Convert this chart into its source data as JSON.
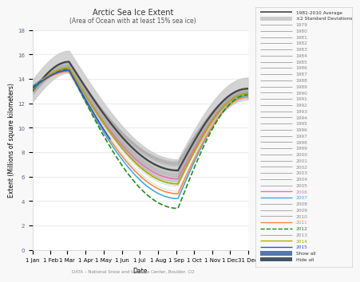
{
  "title": "Arctic Sea Ice Extent",
  "subtitle": "(Area of Ocean with at least 15% sea ice)",
  "xlabel": "Date",
  "ylabel": "Extent (Millions of square kilometers)",
  "source": "DATA – National Snow and Ice Data Center, Boulder, CO",
  "background_color": "#f8f8f8",
  "plot_bg_color": "#ffffff",
  "ylim": [
    0,
    18
  ],
  "yticks": [
    0,
    2,
    4,
    6,
    8,
    10,
    12,
    14,
    16,
    18
  ],
  "highlighted_years": {
    "2006": {
      "color": "#dd77aa",
      "lw": 1.2,
      "ls": "-"
    },
    "2007": {
      "color": "#44aadd",
      "lw": 1.2,
      "ls": "-"
    },
    "2011": {
      "color": "#ff8844",
      "lw": 1.2,
      "ls": "-"
    },
    "2012": {
      "color": "#228b22",
      "lw": 1.2,
      "ls": "--"
    },
    "2014": {
      "color": "#aaaa00",
      "lw": 1.2,
      "ls": "-"
    },
    "2015": {
      "color": "#2255cc",
      "lw": 1.2,
      "ls": "-"
    }
  },
  "avg_color": "#444444",
  "shade_color": "#cccccc",
  "other_color": "#aaaaaa",
  "months_label": [
    "1 Jan",
    "1 Feb",
    "1 Mar",
    "1 Apr",
    "1 May",
    "1 Jun",
    "1 Jul",
    "1 Aug",
    "1 Sep",
    "1 Oct",
    "1 Nov",
    "1 Dec",
    "31 Dec"
  ],
  "months_pos": [
    0,
    31,
    59,
    90,
    120,
    151,
    181,
    212,
    243,
    273,
    304,
    334,
    364
  ],
  "title_fontsize": 7,
  "subtitle_fontsize": 5.5,
  "axis_label_fontsize": 5.5,
  "tick_fontsize": 5,
  "legend_fontsize": 4.2,
  "source_fontsize": 4
}
